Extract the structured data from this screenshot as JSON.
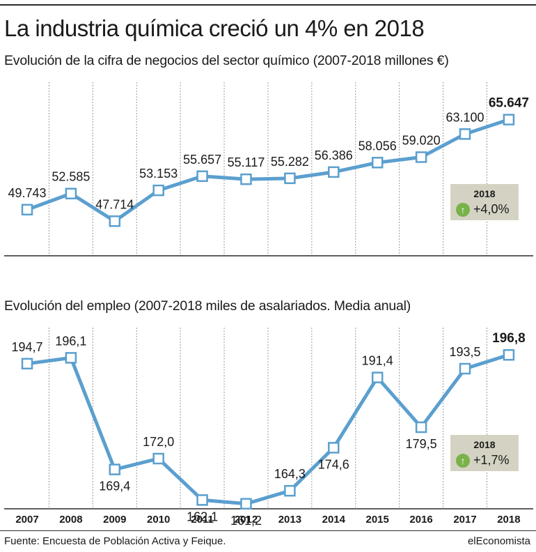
{
  "title": "La industria química creció un 4% en 2018",
  "source": "Fuente: Encuesta de Población Activa y Feique.",
  "brand": "elEconomista",
  "chart_data": [
    {
      "type": "line",
      "title": "Evolución de la cifra de negocios del sector químico (2007-2018 millones €)",
      "x": [
        "2007",
        "2008",
        "2009",
        "2010",
        "2011",
        "2012",
        "2013",
        "2014",
        "2015",
        "2016",
        "2017",
        "2018"
      ],
      "values": [
        49743,
        52585,
        47714,
        53153,
        55657,
        55117,
        55282,
        56386,
        58056,
        59020,
        63100,
        65647
      ],
      "data_labels": [
        "49.743",
        "52.585",
        "47.714",
        "53.153",
        "55.657",
        "55.117",
        "55.282",
        "56.386",
        "58.056",
        "59.020",
        "63.100",
        "65.647"
      ],
      "highlight": {
        "year": "2018",
        "change": "+4,0%"
      },
      "ylim": [
        40000,
        72000
      ],
      "line_color": "#5b9fcf",
      "grid": "vertical-dashed"
    },
    {
      "type": "line",
      "title": "Evolución del empleo (2007-2018 miles de asalariados. Media anual)",
      "x": [
        "2007",
        "2008",
        "2009",
        "2010",
        "2011",
        "2012",
        "2013",
        "2014",
        "2015",
        "2016",
        "2017",
        "2018"
      ],
      "values": [
        194.7,
        196.1,
        169.4,
        172.0,
        162.1,
        161.2,
        164.3,
        174.6,
        191.4,
        179.5,
        193.5,
        196.8
      ],
      "data_labels": [
        "194,7",
        "196,1",
        "169,4",
        "172,0",
        "162,1",
        "161,2",
        "164,3",
        "174,6",
        "191,4",
        "179,5",
        "193,5",
        "196,8"
      ],
      "highlight": {
        "year": "2018",
        "change": "+1,7%"
      },
      "ylim": [
        155,
        205
      ],
      "line_color": "#5b9fcf",
      "grid": "vertical-dashed"
    }
  ]
}
